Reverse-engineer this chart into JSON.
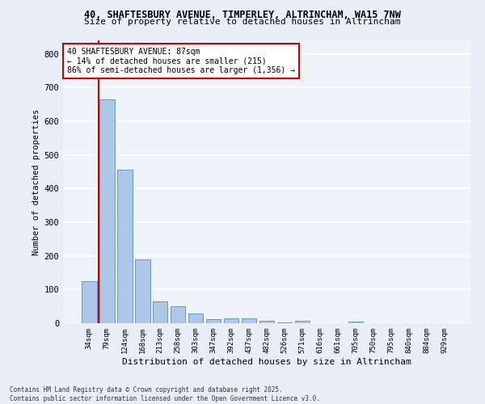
{
  "title1": "40, SHAFTESBURY AVENUE, TIMPERLEY, ALTRINCHAM, WA15 7NW",
  "title2": "Size of property relative to detached houses in Altrincham",
  "xlabel": "Distribution of detached houses by size in Altrincham",
  "ylabel": "Number of detached properties",
  "categories": [
    "34sqm",
    "79sqm",
    "124sqm",
    "168sqm",
    "213sqm",
    "258sqm",
    "303sqm",
    "347sqm",
    "392sqm",
    "437sqm",
    "482sqm",
    "526sqm",
    "571sqm",
    "616sqm",
    "661sqm",
    "705sqm",
    "750sqm",
    "795sqm",
    "840sqm",
    "884sqm",
    "929sqm"
  ],
  "values": [
    125,
    665,
    455,
    190,
    65,
    50,
    30,
    12,
    15,
    15,
    8,
    3,
    8,
    0,
    0,
    5,
    0,
    0,
    0,
    0,
    0
  ],
  "bar_color": "#aec6e8",
  "bar_edge_color": "#5b9bd5",
  "vline_x": 0.55,
  "vline_color": "#cc0000",
  "annotation_text": "40 SHAFTESBURY AVENUE: 87sqm\n← 14% of detached houses are smaller (215)\n86% of semi-detached houses are larger (1,356) →",
  "annotation_box_color": "#ffffff",
  "annotation_box_edge": "#cc0000",
  "bg_color": "#e8eef7",
  "plot_bg_color": "#eef2f9",
  "grid_color": "#ffffff",
  "footer_text": "Contains HM Land Registry data © Crown copyright and database right 2025.\nContains public sector information licensed under the Open Government Licence v3.0.",
  "ylim": [
    0,
    840
  ],
  "yticks": [
    0,
    100,
    200,
    300,
    400,
    500,
    600,
    700,
    800
  ]
}
